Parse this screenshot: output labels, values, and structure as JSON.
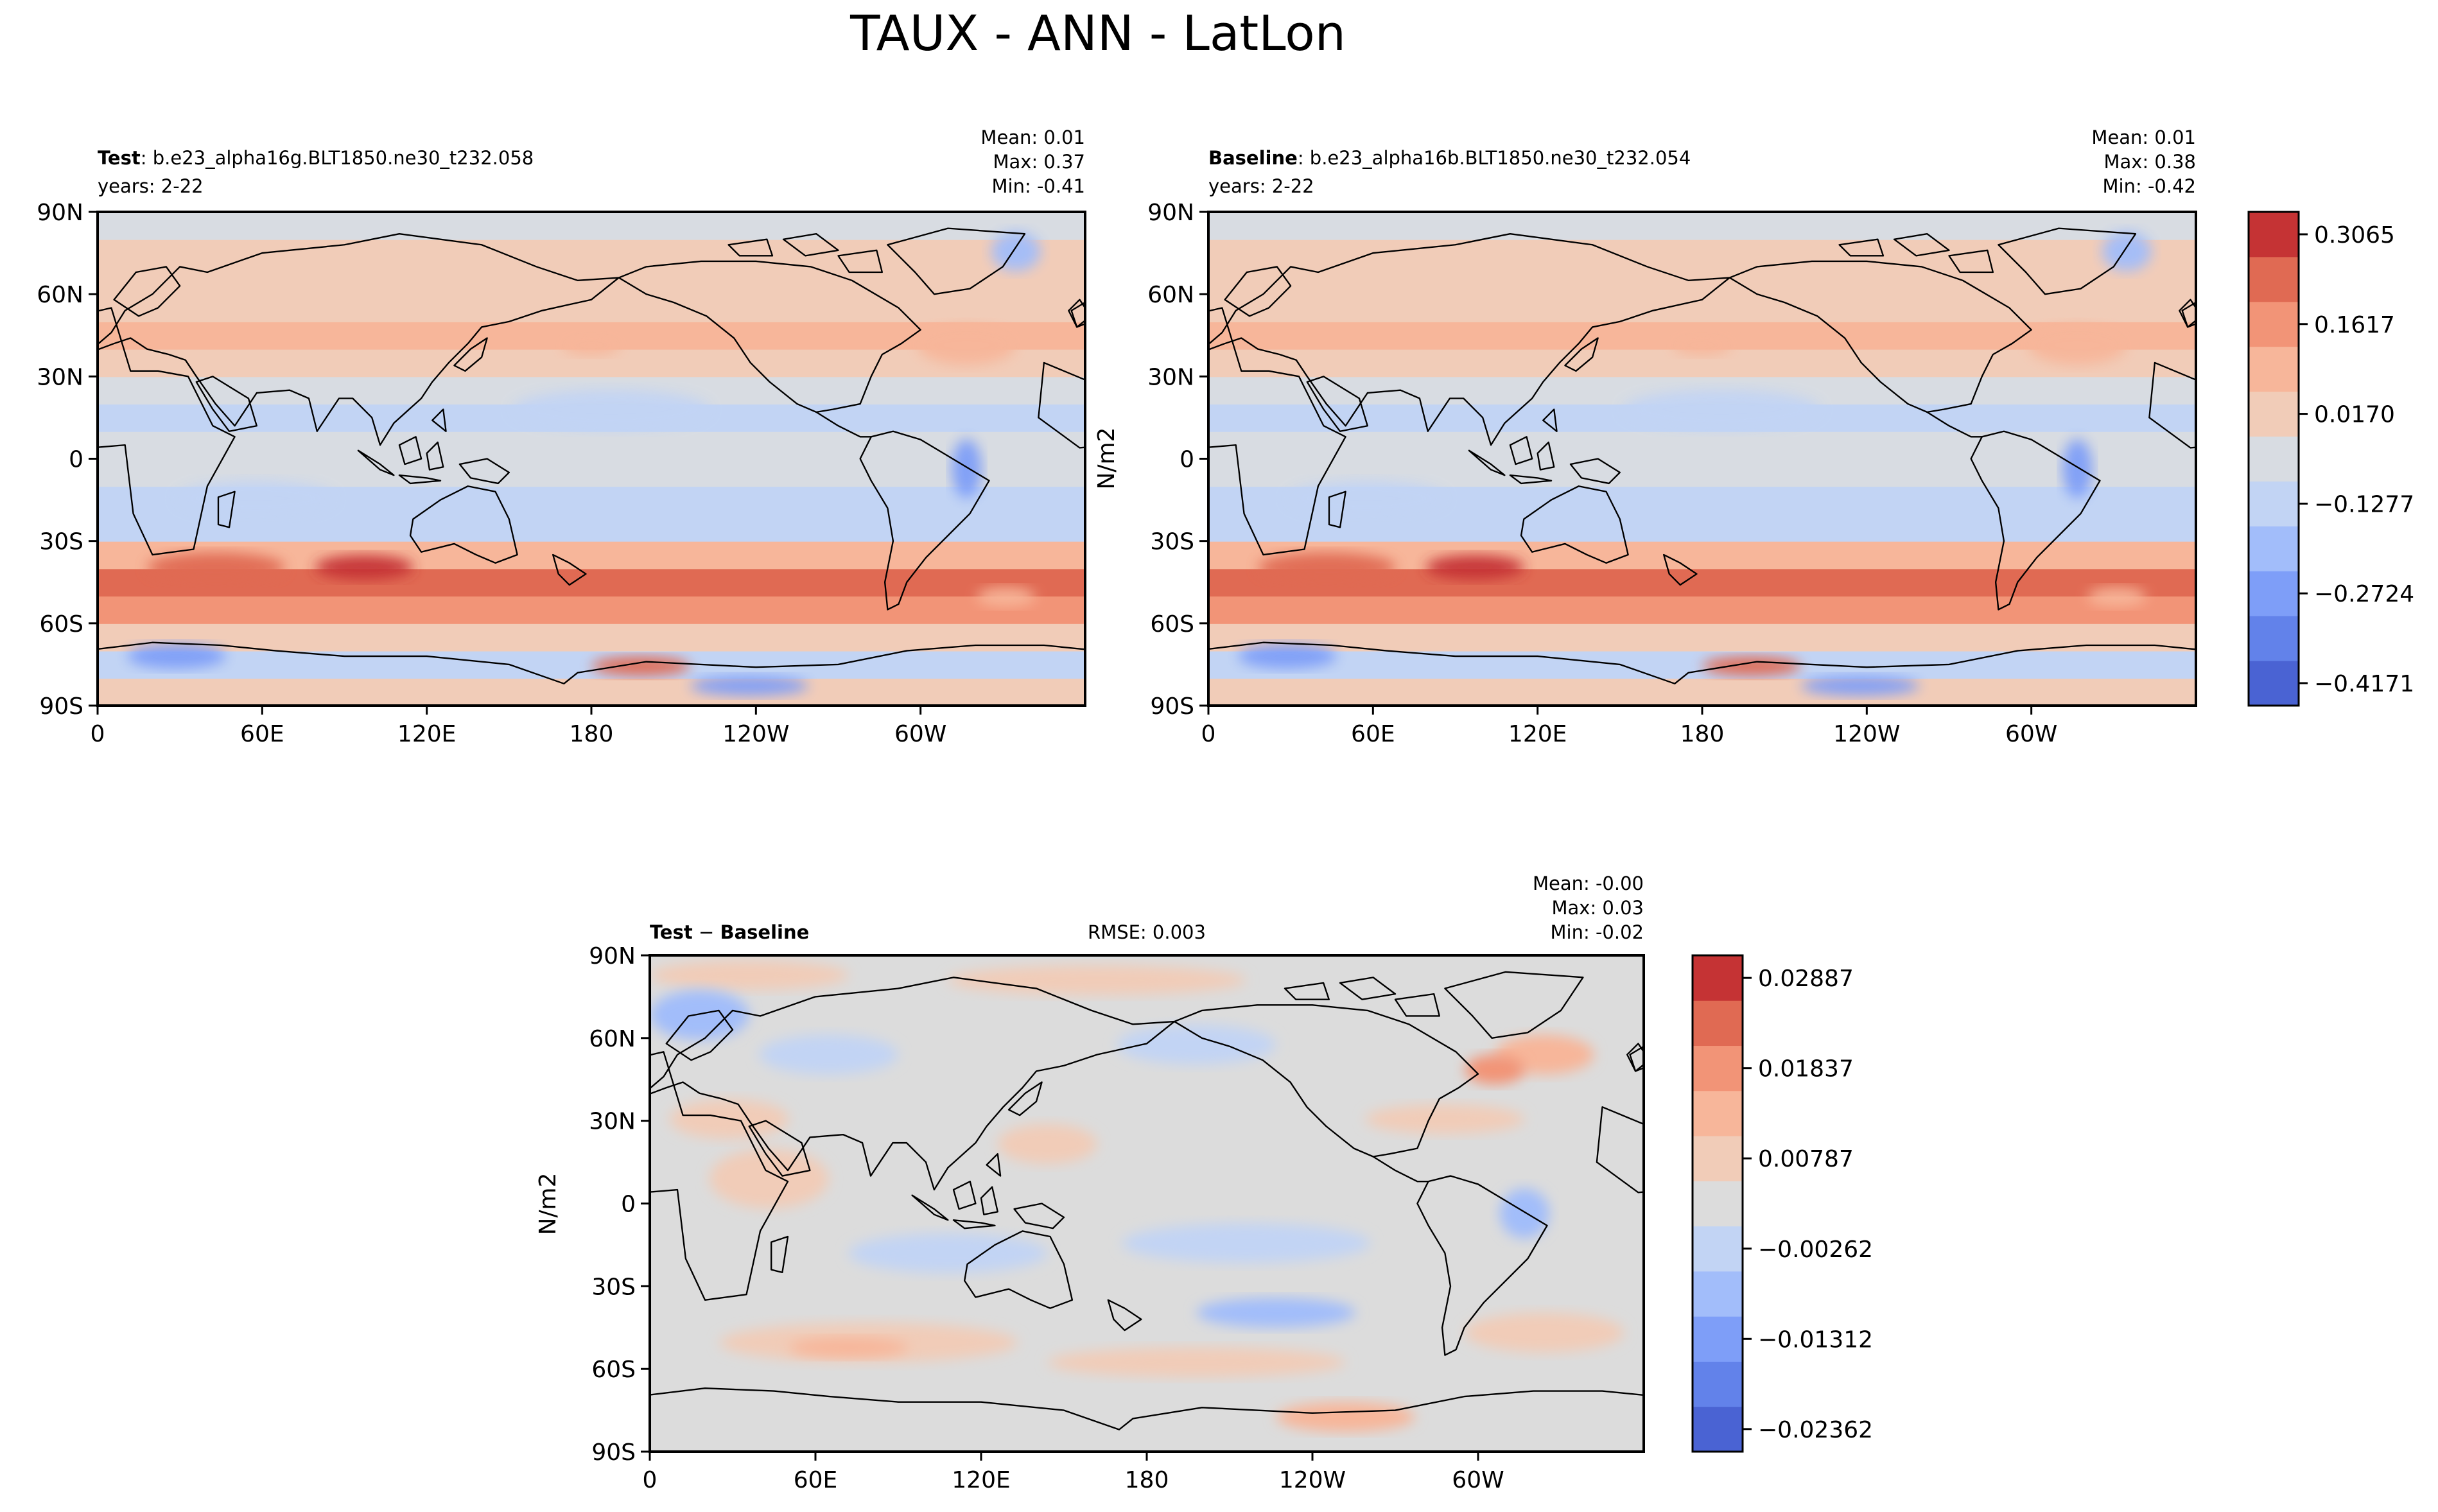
{
  "figure": {
    "title": "TAUX - ANN - LatLon"
  },
  "panels": {
    "test": {
      "label": "Test",
      "case": ": b.e23_alpha16g.BLT1850.ne30_t232.058",
      "years": "years: 2-22",
      "stats": {
        "mean": "Mean:  0.01",
        "max": "Max:  0.37",
        "min": "Min: -0.41"
      }
    },
    "baseline": {
      "label": "Baseline",
      "case": ": b.e23_alpha16b.BLT1850.ne30_t232.054",
      "years": "years: 2-22",
      "ylabel": "N/m2",
      "stats": {
        "mean": "Mean:  0.01",
        "max": "Max:  0.38",
        "min": "Min: -0.42"
      }
    },
    "diff": {
      "label_test": "Test",
      "label_sep": " − ",
      "label_base": "Baseline",
      "rmse": "RMSE: 0.003",
      "ylabel": "N/m2",
      "stats": {
        "mean": "Mean: -0.00",
        "max": "Max:  0.03",
        "min": "Min: -0.02"
      }
    }
  },
  "axes": {
    "lon_ticks": [
      "0",
      "60E",
      "120E",
      "180",
      "120W",
      "60W"
    ],
    "lat_ticks": [
      "90N",
      "60N",
      "30N",
      "0",
      "30S",
      "60S",
      "90S"
    ]
  },
  "colorbars": {
    "main": {
      "colors": [
        "#4a63d3",
        "#6282ea",
        "#7e9ef8",
        "#a2bdfa",
        "#c2d4f4",
        "#d8dce2",
        "#f1ccb8",
        "#f7b69a",
        "#f29477",
        "#e06a53",
        "#c53334"
      ],
      "tick_labels": [
        "−0.4171",
        "−0.2724",
        "−0.1277",
        "0.0170",
        "0.1617",
        "0.3065"
      ]
    },
    "diff": {
      "colors": [
        "#4a63d3",
        "#6282ea",
        "#7e9ef8",
        "#a2bdfa",
        "#c2d4f4",
        "#dcdcdc",
        "#f1ccb8",
        "#f7b69a",
        "#f29477",
        "#e06a53",
        "#c53334"
      ],
      "tick_labels": [
        "−0.02362",
        "−0.01312",
        "−0.00262",
        "0.00787",
        "0.01837",
        "0.02887"
      ]
    }
  },
  "chart_data": [
    {
      "type": "heatmap",
      "title": "Test : b.e23_alpha16g.BLT1850.ne30_t232.058",
      "x_ticks": [
        "0",
        "60E",
        "120E",
        "180",
        "120W",
        "60W"
      ],
      "y_ticks": [
        "90N",
        "60N",
        "30N",
        "0",
        "30S",
        "60S",
        "90S"
      ],
      "xlim": [
        0,
        360
      ],
      "ylim": [
        -90,
        90
      ],
      "stats": {
        "mean": 0.01,
        "max": 0.37,
        "min": -0.41
      },
      "zonal_profile": {
        "lat": [
          -85,
          -75,
          -65,
          -55,
          -45,
          -35,
          -25,
          -15,
          -5,
          5,
          15,
          25,
          35,
          45,
          55,
          65,
          75,
          85
        ],
        "value": [
          0.02,
          -0.08,
          0.05,
          0.18,
          0.24,
          0.1,
          -0.06,
          -0.1,
          -0.05,
          -0.02,
          -0.08,
          -0.04,
          0.06,
          0.12,
          0.08,
          0.03,
          0.02,
          0.01
        ]
      }
    },
    {
      "type": "heatmap",
      "title": "Baseline : b.e23_alpha16b.BLT1850.ne30_t232.054",
      "x_ticks": [
        "0",
        "60E",
        "120E",
        "180",
        "120W",
        "60W"
      ],
      "y_ticks": [
        "90N",
        "60N",
        "30N",
        "0",
        "30S",
        "60S",
        "90S"
      ],
      "xlim": [
        0,
        360
      ],
      "ylim": [
        -90,
        90
      ],
      "stats": {
        "mean": 0.01,
        "max": 0.38,
        "min": -0.42
      },
      "zonal_profile": {
        "lat": [
          -85,
          -75,
          -65,
          -55,
          -45,
          -35,
          -25,
          -15,
          -5,
          5,
          15,
          25,
          35,
          45,
          55,
          65,
          75,
          85
        ],
        "value": [
          0.02,
          -0.08,
          0.05,
          0.18,
          0.24,
          0.1,
          -0.06,
          -0.1,
          -0.05,
          -0.02,
          -0.08,
          -0.04,
          0.06,
          0.12,
          0.08,
          0.03,
          0.02,
          0.01
        ]
      }
    },
    {
      "type": "heatmap",
      "title": "Test − Baseline",
      "x_ticks": [
        "0",
        "60E",
        "120E",
        "180",
        "120W",
        "60W"
      ],
      "y_ticks": [
        "90N",
        "60N",
        "30N",
        "0",
        "30S",
        "60S",
        "90S"
      ],
      "xlim": [
        0,
        360
      ],
      "ylim": [
        -90,
        90
      ],
      "stats": {
        "mean": -0.0,
        "max": 0.03,
        "min": -0.02,
        "rmse": 0.003
      }
    }
  ]
}
